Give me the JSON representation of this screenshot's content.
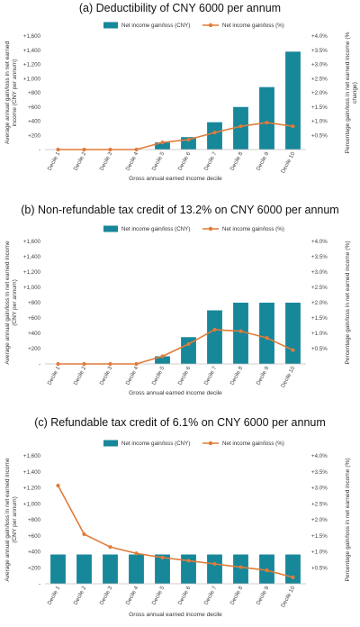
{
  "chart_data": [
    {
      "type": "bar",
      "title": "(a)  Deductibility of CNY 6000 per annum",
      "xlabel": "Gross annual earned income decile",
      "ylabel": "Average annual gain/loss in net earned income (CNY per annum)",
      "y2label": "Percentage gain/loss in net earned income (% change)",
      "categories": [
        "Decile 1",
        "Decile 2",
        "Decile 3",
        "Decile 4",
        "Decile 5",
        "Decile 6",
        "Decile 7",
        "Decile 8",
        "Decile 9",
        "Decile 10"
      ],
      "ylim": [
        0,
        1600
      ],
      "y2lim": [
        0,
        4.0
      ],
      "yticks": [
        "-",
        "+200",
        "+400",
        "+600",
        "+800",
        "+1,000",
        "+1,200",
        "+1,400",
        "+1,600"
      ],
      "y2ticks": [
        "",
        "+0.5%",
        "+1.0%",
        "+1.5%",
        "+2.0%",
        "+2.5%",
        "+3.0%",
        "+3.5%",
        "+4.0%"
      ],
      "grid": false,
      "legend": "top",
      "series": [
        {
          "name": "Net income gain/loss (CNY)",
          "type": "bar",
          "axis": "left",
          "color": "#17879a",
          "values": [
            0,
            0,
            0,
            0,
            100,
            175,
            385,
            600,
            880,
            1380
          ]
        },
        {
          "name": "Net income gain/loss (%)",
          "type": "line",
          "axis": "right",
          "color": "#e07b39",
          "values": [
            0,
            0,
            0,
            0,
            0.25,
            0.35,
            0.6,
            0.82,
            0.95,
            0.82
          ]
        }
      ]
    },
    {
      "type": "bar",
      "title": "(b) Non-refundable tax credit of 13.2% on CNY 6000 per annum",
      "xlabel": "Gross annual earned income decile",
      "ylabel": "Average annual gain/loss in net earned income (CNY per annum)",
      "y2label": "Percentage gain/loss in net earned income (%)",
      "categories": [
        "Decile 1",
        "Decile 2",
        "Decile 3",
        "Decile 4",
        "Decile 5",
        "Decile 6",
        "Decile 7",
        "Decile 8",
        "Decile 9",
        "Decile 10"
      ],
      "ylim": [
        0,
        1600
      ],
      "y2lim": [
        0,
        4.0
      ],
      "yticks": [
        "-",
        "+200",
        "+400",
        "+600",
        "+800",
        "+1,000",
        "+1,200",
        "+1,400",
        "+1,600"
      ],
      "y2ticks": [
        "",
        "+0.5%",
        "+1.0%",
        "+1.5%",
        "+2.0%",
        "+2.5%",
        "+3.0%",
        "+3.5%",
        "+4.0%"
      ],
      "grid": false,
      "legend": "top",
      "series": [
        {
          "name": "Net income gain/loss (CNY)",
          "type": "bar",
          "axis": "left",
          "color": "#17879a",
          "values": [
            0,
            0,
            0,
            0,
            100,
            350,
            700,
            800,
            800,
            800
          ]
        },
        {
          "name": "Net income gain/loss (%)",
          "type": "line",
          "axis": "right",
          "color": "#e07b39",
          "values": [
            0,
            0,
            0,
            0,
            0.25,
            0.65,
            1.12,
            1.07,
            0.85,
            0.45
          ]
        }
      ]
    },
    {
      "type": "bar",
      "title": "(c) Refundable tax credit of 6.1% on CNY 6000 per annum",
      "xlabel": "Gross annual earned income decile",
      "ylabel": "Average annual gain/loss in net earned income (CNY per annum)",
      "y2label": "Percentage gain/loss in net earned income (%)",
      "categories": [
        "Decile 1",
        "Decile 2",
        "Decile 3",
        "Decile 4",
        "Decile 5",
        "Decile 6",
        "Decile 7",
        "Decile 8",
        "Decile 9",
        "Decile 10"
      ],
      "ylim": [
        0,
        1600
      ],
      "y2lim": [
        0,
        4.0
      ],
      "yticks": [
        "-",
        "+200",
        "+400",
        "+600",
        "+800",
        "+1,000",
        "+1,200",
        "+1,400",
        "+1,600"
      ],
      "y2ticks": [
        "",
        "+0.5%",
        "+1.0%",
        "+1.5%",
        "+2.0%",
        "+2.5%",
        "+3.0%",
        "+3.5%",
        "+4.0%"
      ],
      "grid": false,
      "legend": "top",
      "series": [
        {
          "name": "Net income gain/loss (CNY)",
          "type": "bar",
          "axis": "left",
          "color": "#17879a",
          "values": [
            366,
            366,
            366,
            366,
            366,
            366,
            366,
            366,
            366,
            366
          ]
        },
        {
          "name": "Net income gain/loss (%)",
          "type": "line",
          "axis": "right",
          "color": "#e07b39",
          "values": [
            3.07,
            1.55,
            1.15,
            0.95,
            0.82,
            0.72,
            0.62,
            0.52,
            0.42,
            0.2
          ]
        }
      ]
    }
  ]
}
